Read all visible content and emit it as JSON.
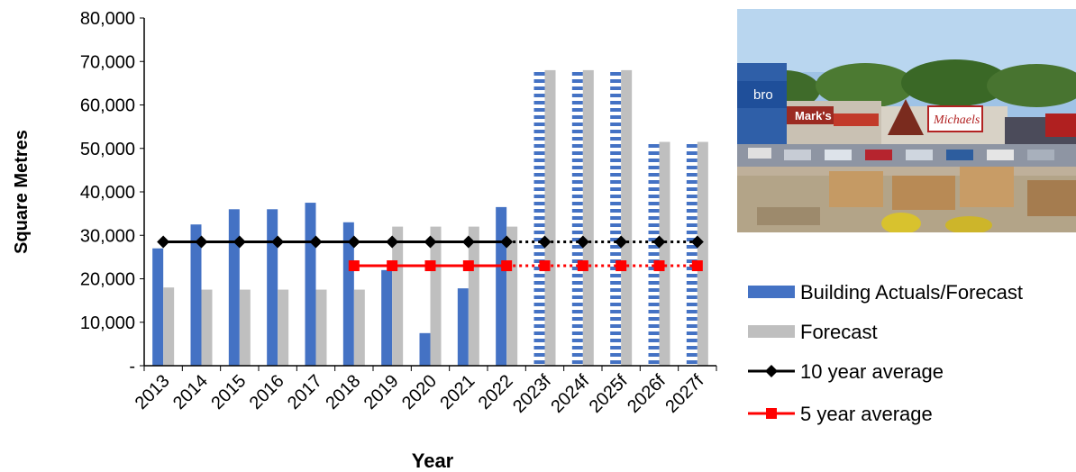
{
  "chart_data": {
    "type": "bar",
    "xlabel": "Year",
    "ylabel": "Square Metres",
    "ylim": [
      0,
      80000
    ],
    "y_ticks": [
      "-",
      "10,000",
      "20,000",
      "30,000",
      "40,000",
      "50,000",
      "60,000",
      "70,000",
      "80,000"
    ],
    "grid": false,
    "legend_position": "right",
    "categories": [
      "2013",
      "2014",
      "2015",
      "2016",
      "2017",
      "2018",
      "2019",
      "2020",
      "2021",
      "2022",
      "2023f",
      "2024f",
      "2025f",
      "2026f",
      "2027f"
    ],
    "series": [
      {
        "name": "Building Actuals/Forecast",
        "kind": "bar",
        "color": "#4472C4",
        "values": [
          27000,
          32500,
          36000,
          36000,
          37500,
          33000,
          22000,
          7500,
          17800,
          36500,
          68000,
          68000,
          68000,
          51500,
          51500
        ],
        "forecast_from_index": 10
      },
      {
        "name": "Forecast",
        "kind": "bar",
        "color": "#BFBFBF",
        "values": [
          18000,
          17500,
          17500,
          17500,
          17500,
          17500,
          32000,
          32000,
          32000,
          32000,
          68000,
          68000,
          68000,
          51500,
          51500
        ]
      },
      {
        "name": "10 year average",
        "kind": "line",
        "color": "#000000",
        "marker": "diamond",
        "values": [
          28500,
          28500,
          28500,
          28500,
          28500,
          28500,
          28500,
          28500,
          28500,
          28500,
          28500,
          28500,
          28500,
          28500,
          28500
        ],
        "dotted_from_index": 9
      },
      {
        "name": "5 year average",
        "kind": "line",
        "color": "#FF0000",
        "marker": "square",
        "values": [
          null,
          null,
          null,
          null,
          null,
          23000,
          23000,
          23000,
          23000,
          23000,
          23000,
          23000,
          23000,
          23000,
          23000
        ],
        "dotted_from_index": 9
      }
    ]
  },
  "photo": {
    "signs": [
      "bro",
      "Mark's",
      "Michaels"
    ]
  }
}
